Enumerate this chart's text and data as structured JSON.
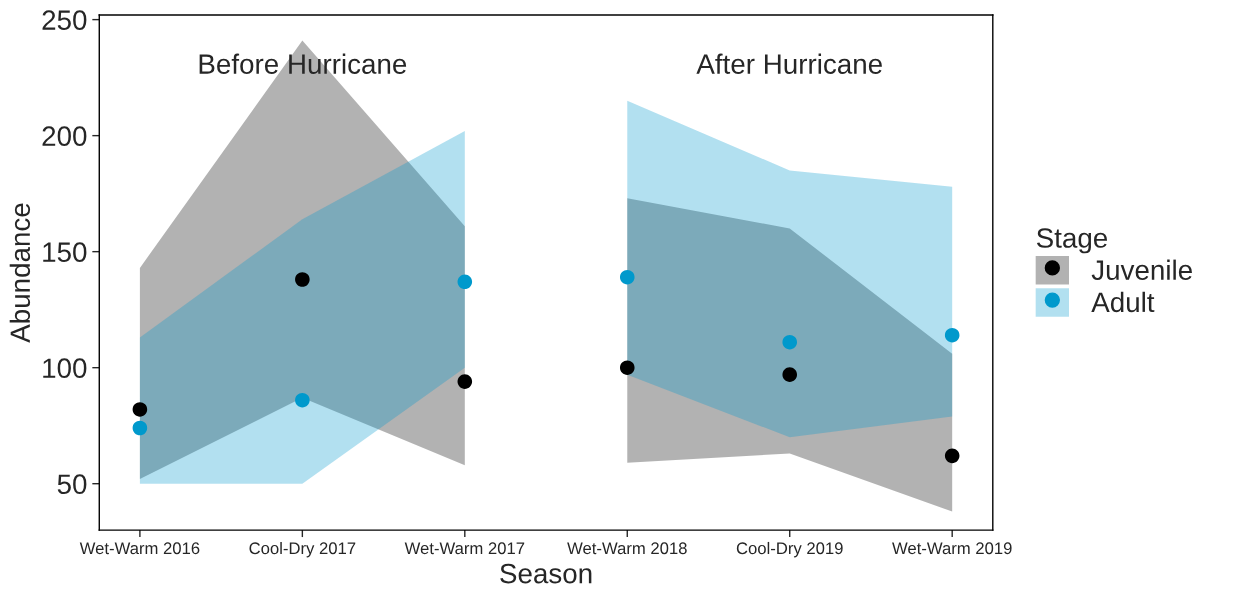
{
  "chart_data": {
    "type": "scatter",
    "xlabel": "Season",
    "ylabel": "Abundance",
    "legend_title": "Stage",
    "categories": [
      "Wet-Warm 2016",
      "Cool-Dry 2017",
      "Wet-Warm 2017",
      "Wet-Warm 2018",
      "Cool-Dry 2019",
      "Wet-Warm 2019"
    ],
    "ylim": [
      30,
      252
    ],
    "yticks": [
      50,
      100,
      150,
      200,
      250
    ],
    "grid": false,
    "legend": "right",
    "marker": "circle",
    "annotations": [
      "Before Hurricane",
      "After Hurricane"
    ],
    "series": [
      {
        "name": "Juvenile",
        "color": "#000000",
        "values": [
          82,
          138,
          94,
          100,
          97,
          62
        ],
        "lower": [
          52,
          87,
          58,
          59,
          63,
          38
        ],
        "upper": [
          143,
          241,
          161,
          173,
          160,
          106
        ]
      },
      {
        "name": "Adult",
        "color": "#0099cc",
        "values": [
          74,
          86,
          137,
          139,
          111,
          114
        ],
        "lower": [
          50,
          50,
          100,
          97,
          70,
          79
        ],
        "upper": [
          113,
          164,
          202,
          215,
          185,
          178
        ]
      }
    ]
  }
}
